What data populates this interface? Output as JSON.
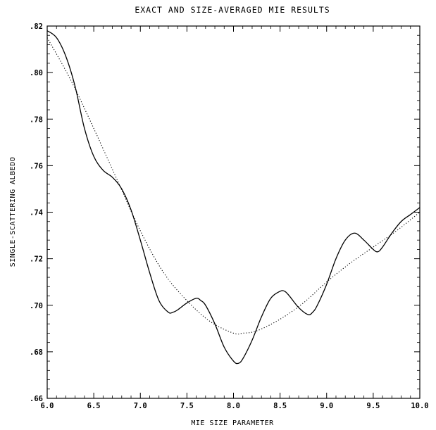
{
  "chart_data": {
    "type": "line",
    "title": "EXACT AND SIZE-AVERAGED MIE RESULTS",
    "xlabel": "MIE SIZE PARAMETER",
    "ylabel": "SINGLE-SCATTERING ALBEDO",
    "xlim": [
      6.0,
      10.0
    ],
    "ylim": [
      0.66,
      0.82
    ],
    "x_ticks": [
      "6.0",
      "6.5",
      "7.0",
      "7.5",
      "8.0",
      "8.5",
      "9.0",
      "9.5",
      "10.0"
    ],
    "y_ticks": [
      ".66",
      ".68",
      ".70",
      ".72",
      ".74",
      ".76",
      ".78",
      ".80",
      ".82"
    ],
    "grid": false,
    "series": [
      {
        "style": "solid",
        "x": [
          6.0,
          6.1,
          6.2,
          6.3,
          6.4,
          6.5,
          6.6,
          6.7,
          6.8,
          6.9,
          7.0,
          7.1,
          7.2,
          7.3,
          7.35,
          7.4,
          7.5,
          7.6,
          7.65,
          7.7,
          7.8,
          7.9,
          8.0,
          8.05,
          8.1,
          8.2,
          8.3,
          8.4,
          8.5,
          8.55,
          8.6,
          8.7,
          8.8,
          8.85,
          8.9,
          9.0,
          9.1,
          9.2,
          9.3,
          9.4,
          9.5,
          9.55,
          9.6,
          9.7,
          9.8,
          9.9,
          10.0
        ],
        "values": [
          0.818,
          0.815,
          0.807,
          0.794,
          0.776,
          0.764,
          0.758,
          0.755,
          0.75,
          0.741,
          0.728,
          0.714,
          0.702,
          0.697,
          0.697,
          0.698,
          0.701,
          0.703,
          0.702,
          0.7,
          0.692,
          0.682,
          0.676,
          0.675,
          0.677,
          0.685,
          0.695,
          0.703,
          0.706,
          0.706,
          0.704,
          0.699,
          0.696,
          0.697,
          0.7,
          0.709,
          0.72,
          0.728,
          0.731,
          0.728,
          0.724,
          0.723,
          0.725,
          0.731,
          0.736,
          0.739,
          0.742
        ]
      },
      {
        "style": "dotted",
        "x": [
          6.0,
          6.25,
          6.5,
          6.75,
          7.0,
          7.25,
          7.5,
          7.75,
          8.0,
          8.1,
          8.25,
          8.5,
          8.75,
          9.0,
          9.25,
          9.5,
          9.75,
          10.0
        ],
        "values": [
          0.815,
          0.797,
          0.776,
          0.754,
          0.732,
          0.714,
          0.702,
          0.693,
          0.688,
          0.688,
          0.689,
          0.694,
          0.701,
          0.71,
          0.718,
          0.725,
          0.732,
          0.74
        ]
      }
    ]
  }
}
